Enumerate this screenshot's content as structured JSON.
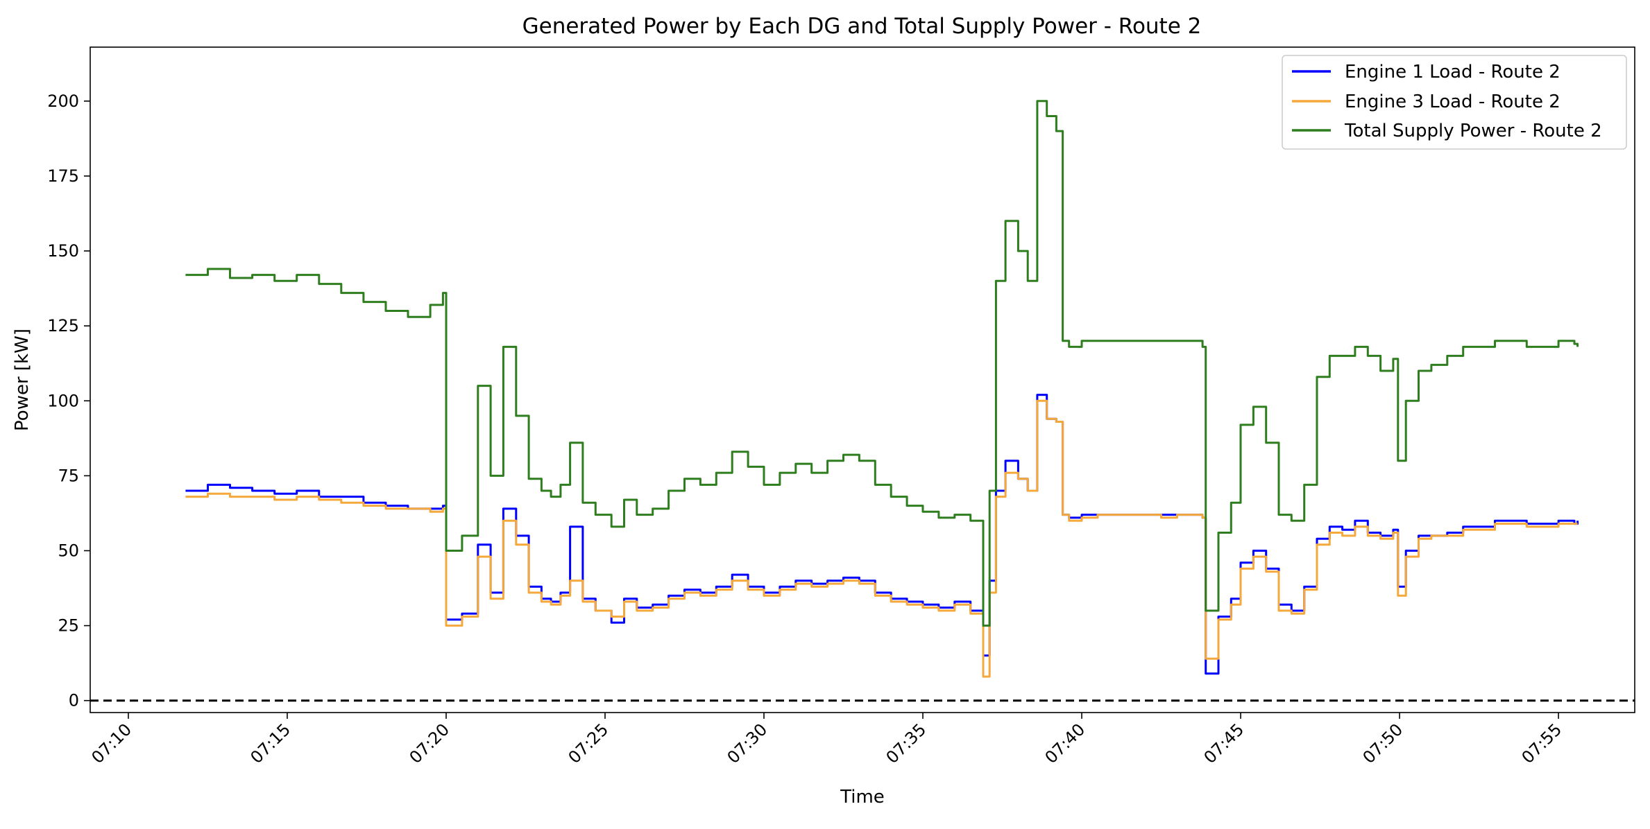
{
  "chart_data": {
    "type": "line",
    "title": "Generated Power by Each DG and Total Supply Power - Route 2",
    "xlabel": "Time",
    "ylabel": "Power [kW]",
    "xlim_minutes": [
      428.8,
      477.4
    ],
    "ylim": [
      -4,
      218
    ],
    "x_ticks": [
      {
        "label": "07:10",
        "minutes": 430
      },
      {
        "label": "07:15",
        "minutes": 435
      },
      {
        "label": "07:20",
        "minutes": 440
      },
      {
        "label": "07:25",
        "minutes": 445
      },
      {
        "label": "07:30",
        "minutes": 450
      },
      {
        "label": "07:35",
        "minutes": 455
      },
      {
        "label": "07:40",
        "minutes": 460
      },
      {
        "label": "07:45",
        "minutes": 465
      },
      {
        "label": "07:50",
        "minutes": 470
      },
      {
        "label": "07:55",
        "minutes": 475
      }
    ],
    "y_ticks": [
      {
        "label": "0",
        "value": 0
      },
      {
        "label": "25",
        "value": 25
      },
      {
        "label": "50",
        "value": 50
      },
      {
        "label": "75",
        "value": 75
      },
      {
        "label": "100",
        "value": 100
      },
      {
        "label": "125",
        "value": 125
      },
      {
        "label": "150",
        "value": 150
      },
      {
        "label": "175",
        "value": 175
      },
      {
        "label": "200",
        "value": 200
      }
    ],
    "reference_line": {
      "value": 0,
      "style": "dashed",
      "color": "#000000"
    },
    "legend_position": "top-right",
    "series": [
      {
        "name": "Engine 1 Load - Route 2",
        "color": "#0000ff",
        "x_minutes": [
          431.8,
          432.5,
          433.2,
          433.9,
          434.6,
          435.3,
          436.0,
          436.7,
          437.4,
          438.1,
          438.8,
          439.5,
          439.9,
          440.0,
          440.5,
          441.0,
          441.4,
          441.8,
          442.2,
          442.6,
          443.0,
          443.3,
          443.6,
          443.9,
          444.3,
          444.7,
          445.2,
          445.6,
          446.0,
          446.5,
          447.0,
          447.5,
          448.0,
          448.5,
          449.0,
          449.5,
          450.0,
          450.5,
          451.0,
          451.5,
          452.0,
          452.5,
          453.0,
          453.5,
          454.0,
          454.5,
          455.0,
          455.5,
          456.0,
          456.5,
          456.9,
          457.1,
          457.3,
          457.6,
          458.0,
          458.3,
          458.6,
          458.9,
          459.2,
          459.4,
          459.6,
          460.0,
          460.5,
          461.0,
          461.5,
          462.0,
          462.5,
          463.0,
          463.5,
          463.8,
          463.9,
          464.3,
          464.7,
          465.0,
          465.4,
          465.8,
          466.2,
          466.6,
          467.0,
          467.4,
          467.8,
          468.2,
          468.6,
          469.0,
          469.4,
          469.8,
          469.95,
          470.2,
          470.6,
          471.0,
          471.5,
          472.0,
          472.5,
          473.0,
          473.5,
          474.0,
          474.5,
          475.0,
          475.5,
          475.6
        ],
        "values": [
          70,
          72,
          71,
          70,
          69,
          70,
          68,
          68,
          66,
          65,
          64,
          64,
          65,
          27,
          29,
          52,
          36,
          64,
          55,
          38,
          34,
          33,
          36,
          58,
          34,
          30,
          26,
          34,
          31,
          32,
          35,
          37,
          36,
          38,
          42,
          38,
          36,
          38,
          40,
          39,
          40,
          41,
          40,
          36,
          34,
          33,
          32,
          31,
          33,
          30,
          15,
          40,
          70,
          80,
          74,
          70,
          102,
          94,
          93,
          62,
          61,
          62,
          62,
          62,
          62,
          62,
          62,
          62,
          62,
          61,
          9,
          28,
          34,
          46,
          50,
          44,
          32,
          30,
          38,
          54,
          58,
          57,
          60,
          56,
          55,
          57,
          38,
          50,
          55,
          55,
          56,
          58,
          58,
          60,
          60,
          59,
          59,
          60,
          59,
          60
        ]
      },
      {
        "name": "Engine 3 Load - Route 2",
        "color": "#f5a83b",
        "x_minutes": [
          431.8,
          432.5,
          433.2,
          433.9,
          434.6,
          435.3,
          436.0,
          436.7,
          437.4,
          438.1,
          438.8,
          439.5,
          439.9,
          440.0,
          440.5,
          441.0,
          441.4,
          441.8,
          442.2,
          442.6,
          443.0,
          443.3,
          443.6,
          443.9,
          444.3,
          444.7,
          445.2,
          445.6,
          446.0,
          446.5,
          447.0,
          447.5,
          448.0,
          448.5,
          449.0,
          449.5,
          450.0,
          450.5,
          451.0,
          451.5,
          452.0,
          452.5,
          453.0,
          453.5,
          454.0,
          454.5,
          455.0,
          455.5,
          456.0,
          456.5,
          456.9,
          457.1,
          457.3,
          457.6,
          458.0,
          458.3,
          458.6,
          458.9,
          459.2,
          459.4,
          459.6,
          460.0,
          460.5,
          461.0,
          461.5,
          462.0,
          462.5,
          463.0,
          463.5,
          463.8,
          463.9,
          464.3,
          464.7,
          465.0,
          465.4,
          465.8,
          466.2,
          466.6,
          467.0,
          467.4,
          467.8,
          468.2,
          468.6,
          469.0,
          469.4,
          469.8,
          469.95,
          470.2,
          470.6,
          471.0,
          471.5,
          472.0,
          472.5,
          473.0,
          473.5,
          474.0,
          474.5,
          475.0,
          475.5,
          475.6
        ],
        "values": [
          68,
          69,
          68,
          68,
          67,
          68,
          67,
          66,
          65,
          64,
          64,
          63,
          64,
          25,
          28,
          48,
          34,
          60,
          52,
          36,
          33,
          32,
          35,
          40,
          33,
          30,
          28,
          33,
          30,
          31,
          34,
          36,
          35,
          37,
          40,
          37,
          35,
          37,
          39,
          38,
          39,
          40,
          39,
          35,
          33,
          32,
          31,
          30,
          32,
          29,
          8,
          36,
          68,
          76,
          74,
          70,
          100,
          94,
          93,
          62,
          60,
          61,
          62,
          62,
          62,
          62,
          61,
          62,
          62,
          61,
          14,
          27,
          32,
          44,
          48,
          43,
          30,
          29,
          37,
          52,
          56,
          55,
          58,
          55,
          54,
          56,
          35,
          48,
          54,
          55,
          55,
          57,
          57,
          59,
          59,
          58,
          58,
          59,
          59,
          59
        ]
      },
      {
        "name": "Total Supply Power - Route 2",
        "color": "#2e7d1e",
        "x_minutes": [
          431.8,
          432.5,
          433.2,
          433.9,
          434.6,
          435.3,
          436.0,
          436.7,
          437.4,
          438.1,
          438.8,
          439.5,
          439.9,
          440.0,
          440.5,
          441.0,
          441.4,
          441.8,
          442.2,
          442.6,
          443.0,
          443.3,
          443.6,
          443.9,
          444.3,
          444.7,
          445.2,
          445.6,
          446.0,
          446.5,
          447.0,
          447.5,
          448.0,
          448.5,
          449.0,
          449.5,
          450.0,
          450.5,
          451.0,
          451.5,
          452.0,
          452.5,
          453.0,
          453.5,
          454.0,
          454.5,
          455.0,
          455.5,
          456.0,
          456.5,
          456.9,
          457.1,
          457.3,
          457.6,
          458.0,
          458.3,
          458.6,
          458.9,
          459.2,
          459.4,
          459.6,
          460.0,
          460.5,
          461.0,
          461.5,
          462.0,
          462.5,
          463.0,
          463.5,
          463.8,
          463.9,
          464.3,
          464.7,
          465.0,
          465.4,
          465.8,
          466.2,
          466.6,
          467.0,
          467.4,
          467.8,
          468.2,
          468.6,
          469.0,
          469.4,
          469.8,
          469.95,
          470.2,
          470.6,
          471.0,
          471.5,
          472.0,
          472.5,
          473.0,
          473.5,
          474.0,
          474.5,
          475.0,
          475.5,
          475.6
        ],
        "values": [
          142,
          144,
          141,
          142,
          140,
          142,
          139,
          136,
          133,
          130,
          128,
          132,
          136,
          50,
          55,
          105,
          75,
          118,
          95,
          74,
          70,
          68,
          72,
          86,
          66,
          62,
          58,
          67,
          62,
          64,
          70,
          74,
          72,
          76,
          83,
          78,
          72,
          76,
          79,
          76,
          80,
          82,
          80,
          72,
          68,
          65,
          63,
          61,
          62,
          60,
          25,
          70,
          140,
          160,
          150,
          140,
          200,
          195,
          190,
          120,
          118,
          120,
          120,
          120,
          120,
          120,
          120,
          120,
          120,
          118,
          30,
          56,
          66,
          92,
          98,
          86,
          62,
          60,
          72,
          108,
          115,
          115,
          118,
          115,
          110,
          114,
          80,
          100,
          110,
          112,
          115,
          118,
          118,
          120,
          120,
          118,
          118,
          120,
          119,
          118
        ]
      }
    ]
  }
}
